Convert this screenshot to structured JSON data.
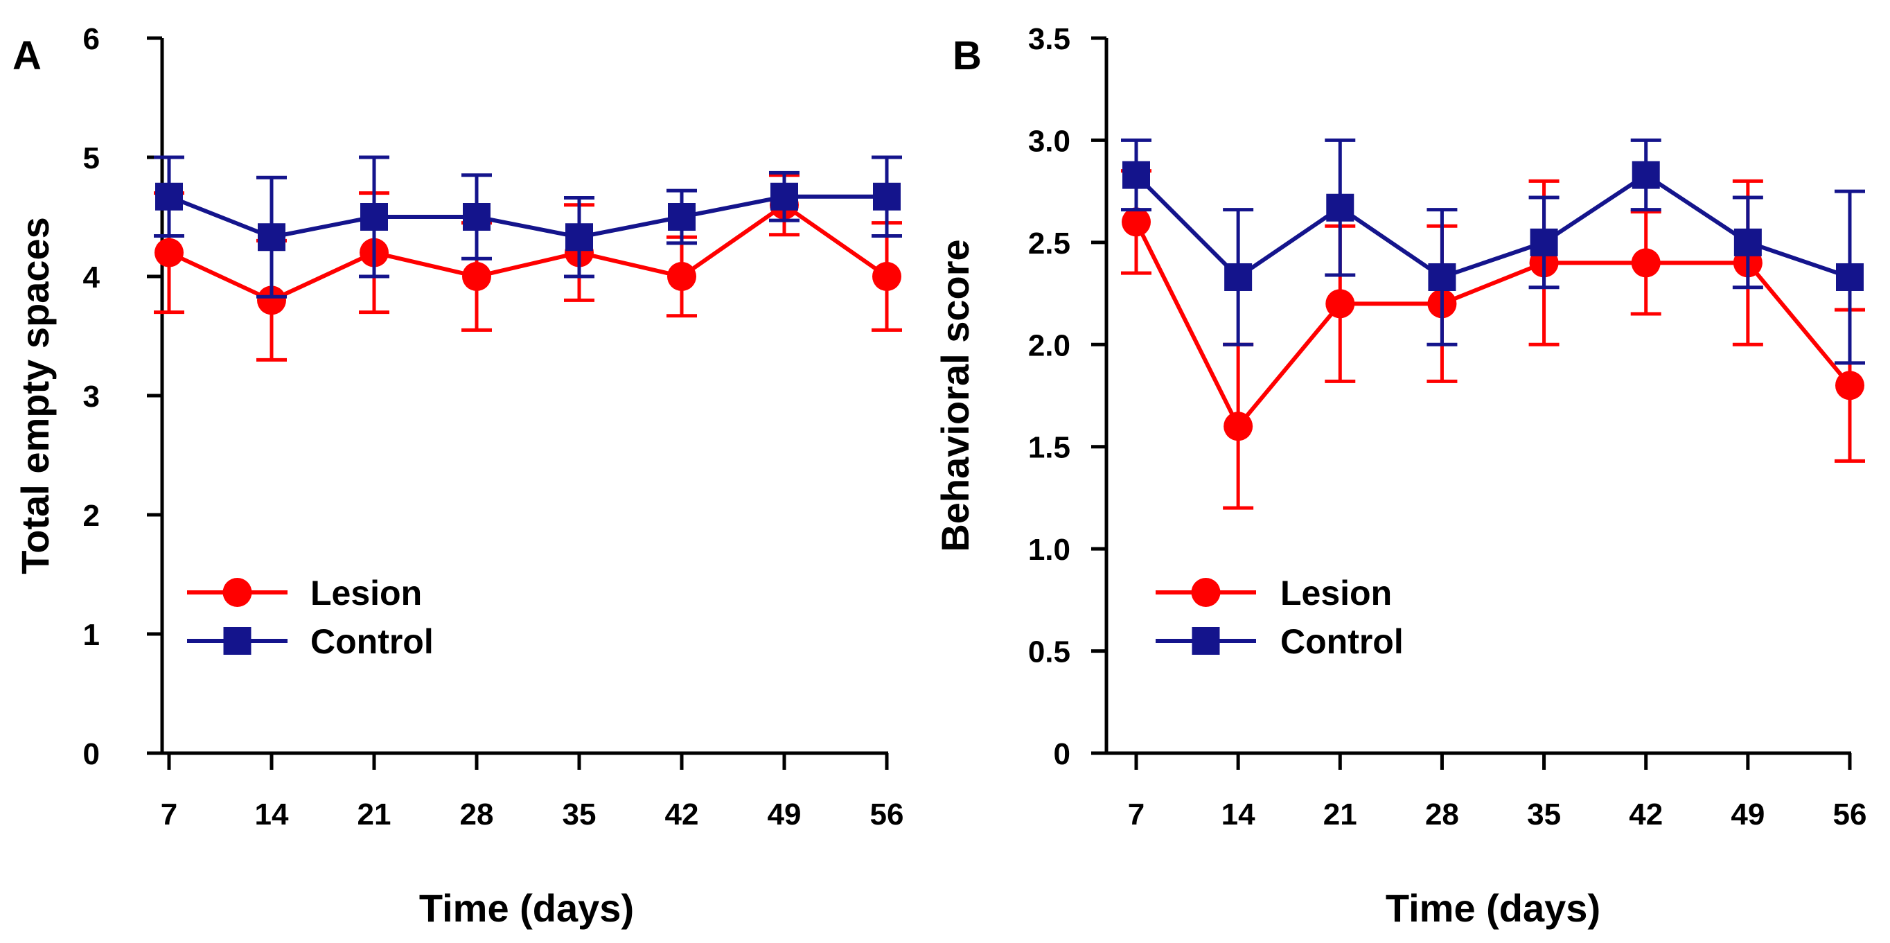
{
  "colors": {
    "lesion": "#ff0000",
    "control": "#14148c",
    "axis": "#000000"
  },
  "chart_data": [
    {
      "type": "line",
      "panel_label": "A",
      "xlabel": "Time (days)",
      "ylabel": "Total empty spaces",
      "x": [
        7,
        14,
        21,
        28,
        35,
        42,
        49,
        56
      ],
      "xticks": [
        "7",
        "14",
        "21",
        "28",
        "35",
        "42",
        "49",
        "56"
      ],
      "ylim": [
        0,
        6
      ],
      "yticks": [
        "0",
        "1",
        "2",
        "3",
        "4",
        "5",
        "6"
      ],
      "legend_position": "lower-left",
      "series": [
        {
          "name": "Lesion",
          "marker": "circle",
          "color": "#ff0000",
          "values": [
            4.2,
            3.8,
            4.2,
            4.0,
            4.2,
            4.0,
            4.6,
            4.0
          ],
          "err": [
            0.5,
            0.5,
            0.5,
            0.45,
            0.4,
            0.33,
            0.25,
            0.45
          ]
        },
        {
          "name": "Control",
          "marker": "square",
          "color": "#14148c",
          "values": [
            4.67,
            4.33,
            4.5,
            4.5,
            4.33,
            4.5,
            4.67,
            4.67
          ],
          "err": [
            0.33,
            0.5,
            0.5,
            0.35,
            0.33,
            0.22,
            0.2,
            0.33
          ]
        }
      ]
    },
    {
      "type": "line",
      "panel_label": "B",
      "xlabel": "Time (days)",
      "ylabel": "Behavioral score",
      "x": [
        7,
        14,
        21,
        28,
        35,
        42,
        49,
        56
      ],
      "xticks": [
        "7",
        "14",
        "21",
        "28",
        "35",
        "42",
        "49",
        "56"
      ],
      "ylim": [
        0,
        3.5
      ],
      "yticks": [
        "0",
        "0.5",
        "1.0",
        "1.5",
        "2.0",
        "2.5",
        "3.0",
        "3.5"
      ],
      "legend_position": "lower-left",
      "series": [
        {
          "name": "Lesion",
          "marker": "circle",
          "color": "#ff0000",
          "values": [
            2.6,
            1.6,
            2.2,
            2.2,
            2.4,
            2.4,
            2.4,
            1.8
          ],
          "err": [
            0.25,
            0.4,
            0.38,
            0.38,
            0.4,
            0.25,
            0.4,
            0.37
          ]
        },
        {
          "name": "Control",
          "marker": "square",
          "color": "#14148c",
          "values": [
            2.83,
            2.33,
            2.67,
            2.33,
            2.5,
            2.83,
            2.5,
            2.33
          ],
          "err": [
            0.17,
            0.33,
            0.33,
            0.33,
            0.22,
            0.17,
            0.22,
            0.42
          ]
        }
      ]
    }
  ]
}
